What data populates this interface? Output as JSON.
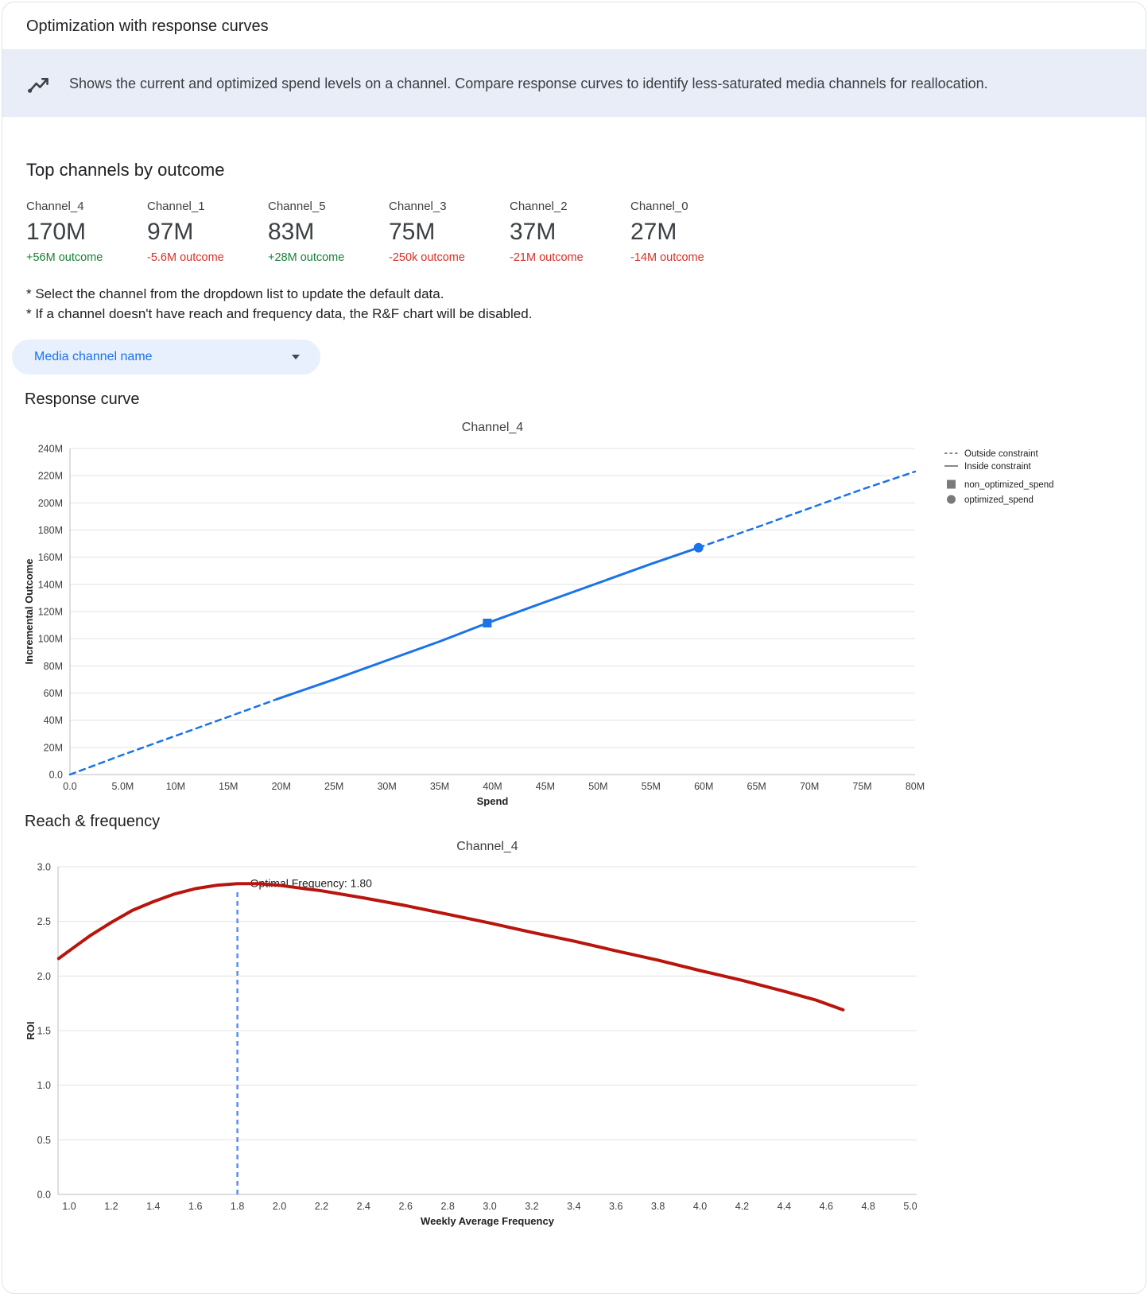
{
  "page": {
    "title": "Optimization with response curves",
    "banner_text": "Shows the current and optimized spend levels on a channel. Compare response curves to identify less-saturated media channels for reallocation."
  },
  "top_channels": {
    "heading": "Top channels by outcome",
    "channels": [
      {
        "name": "Channel_4",
        "value": "170M",
        "delta": "+56M outcome",
        "direction": "positive"
      },
      {
        "name": "Channel_1",
        "value": "97M",
        "delta": "-5.6M outcome",
        "direction": "negative"
      },
      {
        "name": "Channel_5",
        "value": "83M",
        "delta": "+28M outcome",
        "direction": "positive"
      },
      {
        "name": "Channel_3",
        "value": "75M",
        "delta": "-250k outcome",
        "direction": "negative"
      },
      {
        "name": "Channel_2",
        "value": "37M",
        "delta": "-21M outcome",
        "direction": "negative"
      },
      {
        "name": "Channel_0",
        "value": "27M",
        "delta": "-14M outcome",
        "direction": "negative"
      }
    ]
  },
  "notes": [
    "* Select the channel from the dropdown list to update the default data.",
    "* If a channel doesn't have reach and frequency data, the R&F chart will be disabled."
  ],
  "dropdown": {
    "label": "Media channel name"
  },
  "sections": {
    "response_curve": "Response curve",
    "reach_frequency": "Reach & frequency"
  },
  "colors": {
    "accent_blue": "#1a73e8",
    "positive_green": "#188038",
    "negative_red": "#d93025",
    "banner_bg": "#e8edf8"
  },
  "chart_data": [
    {
      "id": "response_curve",
      "type": "line",
      "title": "Channel_4",
      "xlabel": "Spend",
      "ylabel": "Incremental Outcome",
      "x_unit": "millions",
      "y_unit": "millions",
      "xlim": [
        0,
        80
      ],
      "ylim": [
        0,
        240
      ],
      "grid": "horizontal",
      "xticks": [
        0,
        5,
        10,
        15,
        20,
        25,
        30,
        35,
        40,
        45,
        50,
        55,
        60,
        65,
        70,
        75,
        80
      ],
      "xtick_labels": [
        "0.0",
        "5.0M",
        "10M",
        "15M",
        "20M",
        "25M",
        "30M",
        "35M",
        "40M",
        "45M",
        "50M",
        "55M",
        "60M",
        "65M",
        "70M",
        "75M",
        "80M"
      ],
      "yticks": [
        0,
        20,
        40,
        60,
        80,
        100,
        120,
        140,
        160,
        180,
        200,
        220,
        240
      ],
      "ytick_labels": [
        "0.0",
        "20M",
        "40M",
        "60M",
        "80M",
        "100M",
        "120M",
        "140M",
        "160M",
        "180M",
        "200M",
        "220M",
        "240M"
      ],
      "series": [
        {
          "name": "Outside constraint (below)",
          "style": "dashed",
          "color": "#1a73e8",
          "width": 2.5,
          "points": [
            [
              0,
              0
            ],
            [
              5,
              14.5
            ],
            [
              10,
              28.5
            ],
            [
              15,
              42.5
            ],
            [
              19.6,
              55.5
            ]
          ]
        },
        {
          "name": "Inside constraint",
          "style": "solid",
          "color": "#1a73e8",
          "width": 3,
          "points": [
            [
              19.6,
              55.5
            ],
            [
              25,
              70
            ],
            [
              30,
              84
            ],
            [
              35,
              98
            ],
            [
              39.5,
              111.5
            ],
            [
              45,
              127
            ],
            [
              50,
              141
            ],
            [
              55,
              155
            ],
            [
              59.5,
              167
            ]
          ]
        },
        {
          "name": "Outside constraint (above)",
          "style": "dashed",
          "color": "#1a73e8",
          "width": 2.5,
          "points": [
            [
              59.5,
              167
            ],
            [
              65,
              182
            ],
            [
              70,
              196
            ],
            [
              75,
              210
            ],
            [
              80,
              223
            ]
          ]
        }
      ],
      "markers": [
        {
          "name": "non_optimized_spend",
          "shape": "square",
          "x": 39.5,
          "y": 111.5,
          "color": "#1a73e8"
        },
        {
          "name": "optimized_spend",
          "shape": "circle",
          "x": 59.5,
          "y": 167,
          "color": "#1a73e8"
        }
      ],
      "legend_position": "right",
      "legend": [
        {
          "label": "Outside constraint",
          "symbol": "dashed-line"
        },
        {
          "label": "Inside constraint",
          "symbol": "solid-line"
        },
        {
          "label": "non_optimized_spend",
          "symbol": "square"
        },
        {
          "label": "optimized_spend",
          "symbol": "circle"
        }
      ]
    },
    {
      "id": "reach_frequency",
      "type": "line",
      "title": "Channel_4",
      "xlabel": "Weekly Average Frequency",
      "ylabel": "ROI",
      "xlim": [
        0.947,
        5.03
      ],
      "ylim": [
        0,
        3.0
      ],
      "grid": "horizontal",
      "xticks": [
        1.0,
        1.2,
        1.4,
        1.6,
        1.8,
        2.0,
        2.2,
        2.4,
        2.6,
        2.8,
        3.0,
        3.2,
        3.4,
        3.6,
        3.8,
        4.0,
        4.2,
        4.4,
        4.6,
        4.8,
        5.0
      ],
      "xtick_labels": [
        "1.0",
        "1.2",
        "1.4",
        "1.6",
        "1.8",
        "2.0",
        "2.2",
        "2.4",
        "2.6",
        "2.8",
        "3.0",
        "3.2",
        "3.4",
        "3.6",
        "3.8",
        "4.0",
        "4.2",
        "4.4",
        "4.6",
        "4.8",
        "5.0"
      ],
      "yticks": [
        0,
        0.5,
        1.0,
        1.5,
        2.0,
        2.5,
        3.0
      ],
      "ytick_labels": [
        "0.0",
        "0.5",
        "1.0",
        "1.5",
        "2.0",
        "2.5",
        "3.0"
      ],
      "series": [
        {
          "name": "ROI",
          "style": "solid",
          "color": "#b8150d",
          "width": 4,
          "points": [
            [
              0.95,
              2.16
            ],
            [
              1.0,
              2.23
            ],
            [
              1.1,
              2.37
            ],
            [
              1.2,
              2.49
            ],
            [
              1.3,
              2.6
            ],
            [
              1.4,
              2.68
            ],
            [
              1.5,
              2.75
            ],
            [
              1.6,
              2.8
            ],
            [
              1.7,
              2.83
            ],
            [
              1.8,
              2.845
            ],
            [
              1.9,
              2.845
            ],
            [
              2.0,
              2.83
            ],
            [
              2.1,
              2.805
            ],
            [
              2.2,
              2.78
            ],
            [
              2.4,
              2.715
            ],
            [
              2.6,
              2.645
            ],
            [
              2.8,
              2.565
            ],
            [
              3.0,
              2.485
            ],
            [
              3.2,
              2.4
            ],
            [
              3.4,
              2.32
            ],
            [
              3.6,
              2.23
            ],
            [
              3.8,
              2.145
            ],
            [
              4.0,
              2.05
            ],
            [
              4.2,
              1.96
            ],
            [
              4.4,
              1.86
            ],
            [
              4.55,
              1.78
            ],
            [
              4.68,
              1.69
            ]
          ]
        }
      ],
      "annotation": {
        "label": "Optimal Frequency: 1.80",
        "x": 1.8,
        "line_top": 2.8,
        "line_style": "dashed",
        "line_color": "#5b8ff2"
      }
    }
  ]
}
